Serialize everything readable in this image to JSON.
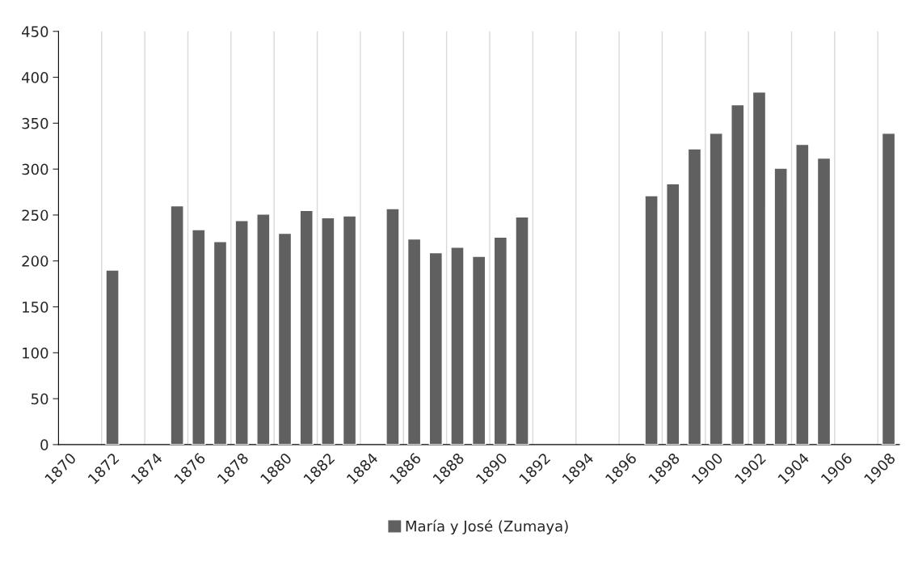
{
  "chart_data": {
    "type": "bar",
    "categories": [
      "1870",
      null,
      "1872",
      null,
      "1874",
      null,
      "1876",
      null,
      "1878",
      null,
      "1880",
      null,
      "1882",
      null,
      "1884",
      null,
      "1886",
      null,
      "1888",
      null,
      "1890",
      null,
      "1892",
      null,
      "1894",
      null,
      "1896",
      null,
      "1898",
      null,
      "1900",
      null,
      "1902",
      null,
      "1904",
      null,
      "1906",
      null,
      "1908"
    ],
    "series": [
      {
        "name": "María y José (Zumaya)",
        "color": "#606060",
        "values": [
          null,
          null,
          190,
          null,
          null,
          260,
          234,
          221,
          244,
          251,
          230,
          255,
          247,
          249,
          null,
          257,
          224,
          209,
          215,
          205,
          226,
          248,
          null,
          null,
          null,
          null,
          null,
          271,
          284,
          322,
          339,
          370,
          384,
          301,
          327,
          312,
          null,
          null,
          339
        ]
      }
    ],
    "ylim": [
      0,
      450
    ],
    "yticks": [
      0,
      50,
      100,
      150,
      200,
      250,
      300,
      350,
      400,
      450
    ],
    "grid": "x",
    "legend": "bottom"
  }
}
